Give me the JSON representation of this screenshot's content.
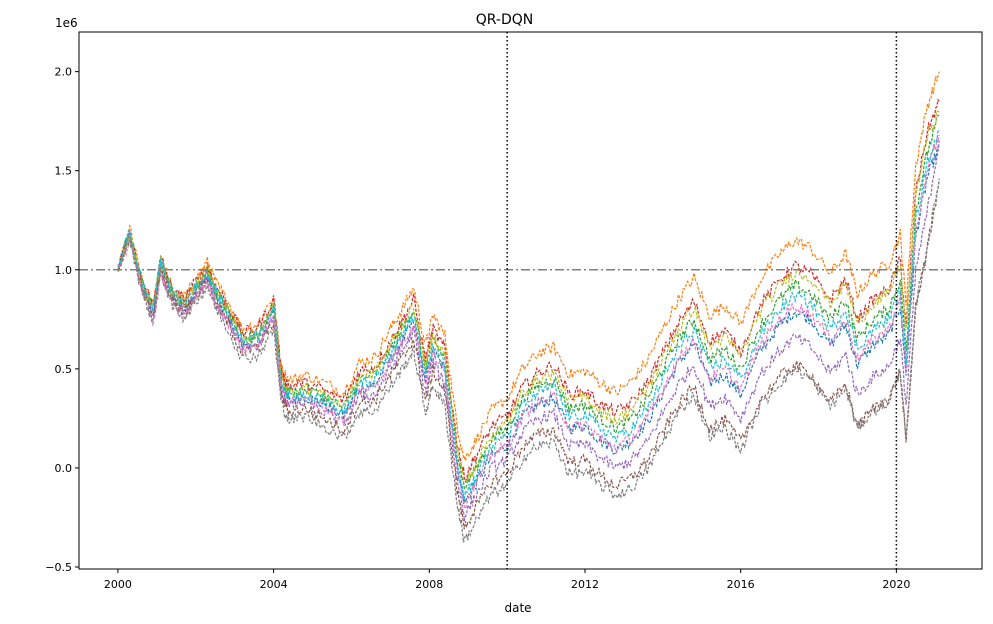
{
  "chart_data": {
    "type": "line",
    "title": "QR-DQN",
    "xlabel": "date",
    "ylabel": "",
    "y_offset_label": "1e6",
    "xlim": [
      1999.0,
      2022.2
    ],
    "ylim": [
      -0.51,
      2.2
    ],
    "x_ticks": [
      2000,
      2004,
      2008,
      2012,
      2016,
      2020
    ],
    "x_tick_labels": [
      "2000",
      "2004",
      "2008",
      "2012",
      "2016",
      "2020"
    ],
    "y_ticks": [
      -0.5,
      0.0,
      0.5,
      1.0,
      1.5,
      2.0
    ],
    "y_tick_labels": [
      "−0.5",
      "0.0",
      "0.5",
      "1.0",
      "1.5",
      "2.0"
    ],
    "reference_hline": {
      "y": 1.0,
      "style": "dashdot",
      "color": "#808080"
    },
    "reference_vlines": [
      {
        "x": 2010.0,
        "style": "dotted",
        "color": "#000000"
      },
      {
        "x": 2020.0,
        "style": "dotted",
        "color": "#000000"
      }
    ],
    "base_path": {
      "x": [
        2000.0,
        2000.3,
        2000.6,
        2000.9,
        2001.1,
        2001.4,
        2001.7,
        2002.0,
        2002.3,
        2002.5,
        2002.8,
        2003.2,
        2003.6,
        2004.0,
        2004.2,
        2004.4,
        2004.8,
        2005.3,
        2005.8,
        2006.2,
        2006.6,
        2007.0,
        2007.3,
        2007.6,
        2007.9,
        2008.1,
        2008.4,
        2008.7,
        2008.9,
        2009.2,
        2009.6,
        2010.0,
        2010.4,
        2010.8,
        2011.2,
        2011.6,
        2012.0,
        2012.4,
        2012.8,
        2013.2,
        2013.6,
        2014.0,
        2014.4,
        2014.8,
        2015.2,
        2015.6,
        2016.0,
        2016.5,
        2017.0,
        2017.4,
        2017.8,
        2018.3,
        2018.7,
        2019.0,
        2019.4,
        2019.8,
        2020.1,
        2020.25,
        2020.5,
        2020.8,
        2021.1
      ],
      "y": [
        1.0,
        1.2,
        0.95,
        0.8,
        1.05,
        0.88,
        0.83,
        0.92,
        1.0,
        0.9,
        0.8,
        0.65,
        0.68,
        0.82,
        0.45,
        0.38,
        0.4,
        0.36,
        0.3,
        0.45,
        0.47,
        0.6,
        0.7,
        0.8,
        0.5,
        0.65,
        0.55,
        0.1,
        -0.1,
        0.0,
        0.15,
        0.2,
        0.35,
        0.42,
        0.45,
        0.3,
        0.32,
        0.25,
        0.2,
        0.25,
        0.35,
        0.5,
        0.65,
        0.75,
        0.55,
        0.6,
        0.5,
        0.72,
        0.85,
        0.92,
        0.88,
        0.75,
        0.85,
        0.65,
        0.75,
        0.8,
        0.95,
        0.6,
        1.3,
        1.6,
        1.75
      ]
    },
    "series": [
      {
        "color": "#1f77b4",
        "values": [
          1.0,
          1.17,
          0.93,
          0.78,
          1.03,
          0.86,
          0.8,
          0.89,
          0.97,
          0.87,
          0.77,
          0.62,
          0.65,
          0.79,
          0.41,
          0.34,
          0.36,
          0.32,
          0.26,
          0.4,
          0.42,
          0.55,
          0.64,
          0.74,
          0.44,
          0.59,
          0.49,
          0.03,
          -0.18,
          -0.08,
          0.06,
          0.11,
          0.26,
          0.32,
          0.35,
          0.2,
          0.21,
          0.14,
          0.09,
          0.14,
          0.23,
          0.38,
          0.53,
          0.63,
          0.43,
          0.47,
          0.37,
          0.59,
          0.72,
          0.79,
          0.75,
          0.62,
          0.72,
          0.52,
          0.62,
          0.67,
          0.82,
          0.47,
          1.17,
          1.47,
          1.62
        ]
      },
      {
        "color": "#ff7f0e",
        "values": [
          1.0,
          1.21,
          0.96,
          0.82,
          1.07,
          0.9,
          0.86,
          0.95,
          1.04,
          0.94,
          0.85,
          0.7,
          0.73,
          0.87,
          0.5,
          0.44,
          0.47,
          0.43,
          0.38,
          0.53,
          0.56,
          0.7,
          0.8,
          0.91,
          0.62,
          0.77,
          0.67,
          0.23,
          0.04,
          0.14,
          0.29,
          0.35,
          0.5,
          0.58,
          0.61,
          0.47,
          0.49,
          0.43,
          0.38,
          0.44,
          0.54,
          0.7,
          0.85,
          0.96,
          0.77,
          0.82,
          0.73,
          0.95,
          1.08,
          1.15,
          1.11,
          0.98,
          1.08,
          0.88,
          0.98,
          1.03,
          1.18,
          0.83,
          1.53,
          1.83,
          2.0
        ]
      },
      {
        "color": "#2ca02c",
        "values": [
          1.0,
          1.19,
          0.94,
          0.8,
          1.05,
          0.88,
          0.83,
          0.92,
          1.0,
          0.9,
          0.8,
          0.65,
          0.68,
          0.82,
          0.45,
          0.38,
          0.4,
          0.36,
          0.3,
          0.45,
          0.47,
          0.6,
          0.7,
          0.8,
          0.5,
          0.65,
          0.55,
          0.1,
          -0.1,
          0.0,
          0.15,
          0.2,
          0.35,
          0.42,
          0.45,
          0.3,
          0.32,
          0.25,
          0.2,
          0.25,
          0.35,
          0.5,
          0.65,
          0.75,
          0.55,
          0.6,
          0.5,
          0.72,
          0.85,
          0.92,
          0.88,
          0.75,
          0.85,
          0.65,
          0.75,
          0.8,
          0.95,
          0.6,
          1.3,
          1.6,
          1.78
        ]
      },
      {
        "color": "#d62728",
        "values": [
          1.0,
          1.18,
          0.95,
          0.82,
          1.06,
          0.89,
          0.85,
          0.94,
          1.02,
          0.92,
          0.83,
          0.68,
          0.71,
          0.85,
          0.48,
          0.41,
          0.43,
          0.39,
          0.34,
          0.49,
          0.51,
          0.64,
          0.74,
          0.85,
          0.55,
          0.7,
          0.6,
          0.15,
          -0.05,
          0.06,
          0.21,
          0.26,
          0.41,
          0.48,
          0.52,
          0.37,
          0.39,
          0.32,
          0.28,
          0.33,
          0.43,
          0.58,
          0.73,
          0.84,
          0.64,
          0.69,
          0.59,
          0.82,
          0.95,
          1.02,
          0.98,
          0.85,
          0.95,
          0.75,
          0.85,
          0.9,
          1.05,
          0.7,
          1.4,
          1.7,
          1.85
        ]
      },
      {
        "color": "#9467bd",
        "values": [
          1.0,
          1.18,
          0.92,
          0.77,
          1.02,
          0.85,
          0.79,
          0.88,
          0.96,
          0.85,
          0.75,
          0.6,
          0.62,
          0.76,
          0.38,
          0.31,
          0.33,
          0.28,
          0.22,
          0.36,
          0.37,
          0.5,
          0.59,
          0.69,
          0.38,
          0.53,
          0.42,
          -0.04,
          -0.24,
          -0.14,
          0.0,
          0.04,
          0.18,
          0.25,
          0.27,
          0.11,
          0.12,
          0.05,
          0.0,
          0.04,
          0.13,
          0.28,
          0.42,
          0.52,
          0.31,
          0.36,
          0.25,
          0.47,
          0.59,
          0.66,
          0.61,
          0.48,
          0.57,
          0.37,
          0.46,
          0.51,
          0.66,
          0.31,
          1.0,
          1.3,
          1.65
        ]
      },
      {
        "color": "#8c564b",
        "values": [
          1.0,
          1.17,
          0.91,
          0.76,
          1.01,
          0.84,
          0.78,
          0.87,
          0.95,
          0.84,
          0.74,
          0.58,
          0.61,
          0.74,
          0.36,
          0.28,
          0.3,
          0.25,
          0.19,
          0.33,
          0.34,
          0.47,
          0.55,
          0.65,
          0.34,
          0.49,
          0.38,
          -0.09,
          -0.3,
          -0.2,
          -0.07,
          -0.03,
          0.11,
          0.17,
          0.19,
          0.03,
          0.04,
          -0.04,
          -0.09,
          -0.05,
          0.04,
          0.18,
          0.32,
          0.41,
          0.2,
          0.24,
          0.13,
          0.34,
          0.46,
          0.52,
          0.47,
          0.33,
          0.42,
          0.21,
          0.3,
          0.34,
          0.49,
          0.13,
          0.82,
          1.11,
          1.45
        ]
      },
      {
        "color": "#e377c2",
        "values": [
          1.0,
          1.15,
          0.9,
          0.72,
          0.98,
          0.82,
          0.76,
          0.85,
          0.94,
          0.84,
          0.75,
          0.6,
          0.62,
          0.77,
          0.4,
          0.33,
          0.35,
          0.31,
          0.24,
          0.39,
          0.41,
          0.54,
          0.63,
          0.73,
          0.43,
          0.58,
          0.48,
          0.02,
          -0.18,
          -0.08,
          0.07,
          0.11,
          0.26,
          0.33,
          0.36,
          0.2,
          0.22,
          0.15,
          0.1,
          0.15,
          0.25,
          0.4,
          0.55,
          0.65,
          0.45,
          0.5,
          0.4,
          0.62,
          0.75,
          0.82,
          0.78,
          0.65,
          0.75,
          0.55,
          0.65,
          0.7,
          0.85,
          0.5,
          1.2,
          1.5,
          1.68
        ]
      },
      {
        "color": "#7f7f7f",
        "values": [
          1.0,
          1.16,
          0.9,
          0.74,
          0.99,
          0.82,
          0.76,
          0.84,
          0.92,
          0.81,
          0.71,
          0.55,
          0.57,
          0.7,
          0.32,
          0.24,
          0.26,
          0.21,
          0.15,
          0.28,
          0.29,
          0.41,
          0.5,
          0.59,
          0.28,
          0.42,
          0.31,
          -0.16,
          -0.37,
          -0.27,
          -0.13,
          -0.09,
          0.05,
          0.11,
          0.13,
          -0.03,
          -0.02,
          -0.09,
          -0.14,
          -0.1,
          -0.01,
          0.13,
          0.28,
          0.37,
          0.16,
          0.2,
          0.09,
          0.31,
          0.43,
          0.5,
          0.45,
          0.31,
          0.4,
          0.2,
          0.29,
          0.34,
          0.49,
          0.13,
          0.83,
          1.12,
          1.46
        ]
      },
      {
        "color": "#bcbd22",
        "values": [
          1.0,
          1.19,
          0.94,
          0.8,
          1.05,
          0.88,
          0.83,
          0.92,
          1.0,
          0.9,
          0.8,
          0.65,
          0.68,
          0.82,
          0.45,
          0.38,
          0.41,
          0.37,
          0.31,
          0.46,
          0.48,
          0.62,
          0.72,
          0.82,
          0.52,
          0.67,
          0.57,
          0.12,
          -0.08,
          0.02,
          0.17,
          0.23,
          0.38,
          0.45,
          0.48,
          0.34,
          0.36,
          0.29,
          0.24,
          0.3,
          0.4,
          0.55,
          0.7,
          0.81,
          0.61,
          0.66,
          0.57,
          0.79,
          0.92,
          0.99,
          0.96,
          0.83,
          0.93,
          0.73,
          0.83,
          0.88,
          1.03,
          0.68,
          1.38,
          1.68,
          1.8
        ]
      },
      {
        "color": "#17becf",
        "values": [
          1.0,
          1.2,
          0.95,
          0.8,
          1.05,
          0.88,
          0.83,
          0.91,
          0.99,
          0.89,
          0.79,
          0.64,
          0.67,
          0.81,
          0.43,
          0.36,
          0.38,
          0.34,
          0.28,
          0.42,
          0.44,
          0.57,
          0.67,
          0.77,
          0.47,
          0.62,
          0.52,
          0.06,
          -0.14,
          -0.04,
          0.11,
          0.16,
          0.31,
          0.38,
          0.41,
          0.26,
          0.27,
          0.2,
          0.15,
          0.2,
          0.3,
          0.45,
          0.6,
          0.7,
          0.5,
          0.55,
          0.45,
          0.67,
          0.8,
          0.87,
          0.83,
          0.7,
          0.8,
          0.6,
          0.7,
          0.75,
          0.9,
          0.55,
          1.25,
          1.55,
          1.7
        ]
      }
    ]
  }
}
